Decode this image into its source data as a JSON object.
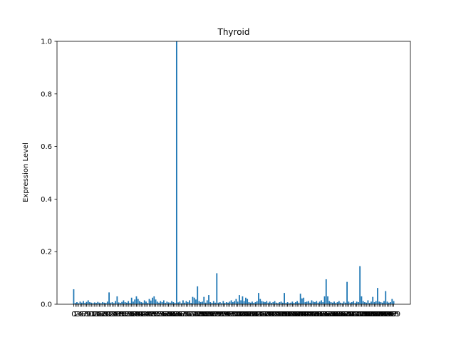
{
  "chart_data": {
    "type": "bar",
    "title": "Thyroid",
    "ylabel": "Expression Level",
    "color": "#1f77b4",
    "categories": [
      0,
      1,
      2,
      3,
      4,
      5,
      6,
      7,
      8,
      9,
      10,
      11,
      12,
      13,
      14,
      15,
      16,
      17,
      18,
      19,
      20,
      21,
      22,
      23,
      24,
      25,
      26,
      27,
      28,
      29,
      30,
      31,
      32,
      33,
      34,
      35,
      36,
      37,
      38,
      39,
      40,
      41,
      42,
      43,
      44,
      45,
      46,
      47,
      48,
      49,
      50,
      51,
      52,
      53,
      54,
      55,
      56,
      57,
      58,
      59,
      60,
      61,
      62,
      63,
      64,
      65,
      66,
      67,
      68,
      69,
      70,
      71,
      72,
      73,
      74,
      75,
      76,
      77,
      78,
      79,
      80,
      81,
      82,
      83,
      84,
      85,
      86,
      87,
      88,
      89,
      90,
      91,
      92,
      93,
      94,
      95,
      96,
      97,
      98,
      99,
      100,
      101,
      102,
      103,
      104,
      105,
      106,
      107,
      108,
      109,
      110,
      111,
      112,
      113,
      114,
      115,
      116,
      117,
      118,
      119,
      120,
      121,
      122,
      123,
      124,
      125,
      126,
      127,
      128,
      129,
      130,
      131,
      132,
      133,
      134,
      135,
      136,
      137,
      138,
      139,
      140,
      141,
      142,
      143,
      144,
      145,
      146,
      147,
      148,
      149,
      150,
      151,
      152,
      153,
      154,
      155,
      156,
      157,
      158,
      159,
      160,
      161,
      162,
      163,
      164,
      165,
      166,
      167,
      168,
      169,
      170,
      171,
      172,
      173,
      174,
      175,
      176,
      177,
      178,
      179,
      180,
      181,
      182,
      183,
      184,
      185,
      186,
      187,
      188,
      189,
      190,
      191,
      192,
      193,
      194,
      195,
      196,
      197,
      198,
      199
    ],
    "values": [
      0.057,
      0.005,
      0.008,
      0.004,
      0.01,
      0.006,
      0.012,
      0.005,
      0.009,
      0.015,
      0.008,
      0.006,
      0.004,
      0.007,
      0.005,
      0.009,
      0.006,
      0.004,
      0.008,
      0.006,
      0.005,
      0.01,
      0.045,
      0.006,
      0.008,
      0.004,
      0.012,
      0.03,
      0.007,
      0.005,
      0.009,
      0.015,
      0.008,
      0.006,
      0.012,
      0.005,
      0.025,
      0.01,
      0.018,
      0.03,
      0.02,
      0.012,
      0.008,
      0.006,
      0.015,
      0.01,
      0.005,
      0.02,
      0.014,
      0.025,
      0.03,
      0.018,
      0.01,
      0.006,
      0.012,
      0.008,
      0.015,
      0.005,
      0.01,
      0.007,
      0.006,
      0.012,
      0.008,
      0.005,
      1.0,
      0.007,
      0.01,
      0.004,
      0.015,
      0.006,
      0.012,
      0.008,
      0.015,
      0.005,
      0.028,
      0.025,
      0.018,
      0.068,
      0.012,
      0.008,
      0.01,
      0.028,
      0.006,
      0.015,
      0.035,
      0.008,
      0.005,
      0.012,
      0.006,
      0.118,
      0.006,
      0.008,
      0.004,
      0.012,
      0.005,
      0.008,
      0.006,
      0.01,
      0.015,
      0.008,
      0.012,
      0.02,
      0.01,
      0.035,
      0.015,
      0.03,
      0.012,
      0.025,
      0.02,
      0.008,
      0.006,
      0.01,
      0.005,
      0.008,
      0.012,
      0.043,
      0.02,
      0.012,
      0.01,
      0.008,
      0.012,
      0.006,
      0.01,
      0.005,
      0.008,
      0.012,
      0.006,
      0.004,
      0.008,
      0.01,
      0.006,
      0.043,
      0.005,
      0.008,
      0.004,
      0.006,
      0.01,
      0.005,
      0.008,
      0.012,
      0.006,
      0.04,
      0.022,
      0.025,
      0.008,
      0.01,
      0.012,
      0.006,
      0.015,
      0.01,
      0.008,
      0.012,
      0.006,
      0.01,
      0.015,
      0.008,
      0.03,
      0.095,
      0.03,
      0.012,
      0.008,
      0.006,
      0.01,
      0.005,
      0.008,
      0.012,
      0.006,
      0.004,
      0.01,
      0.006,
      0.085,
      0.01,
      0.006,
      0.008,
      0.012,
      0.005,
      0.01,
      0.008,
      0.145,
      0.03,
      0.012,
      0.008,
      0.006,
      0.015,
      0.005,
      0.01,
      0.028,
      0.008,
      0.012,
      0.062,
      0.01,
      0.008,
      0.006,
      0.012,
      0.05,
      0.01,
      0.006,
      0.008,
      0.02,
      0.012
    ],
    "ylim": [
      0,
      1.0
    ],
    "yticks": [
      {
        "value": 0,
        "label": "0.0"
      },
      0.2,
      0.4,
      0.6,
      0.8,
      {
        "value": 1.0,
        "label": "1.0"
      }
    ]
  }
}
